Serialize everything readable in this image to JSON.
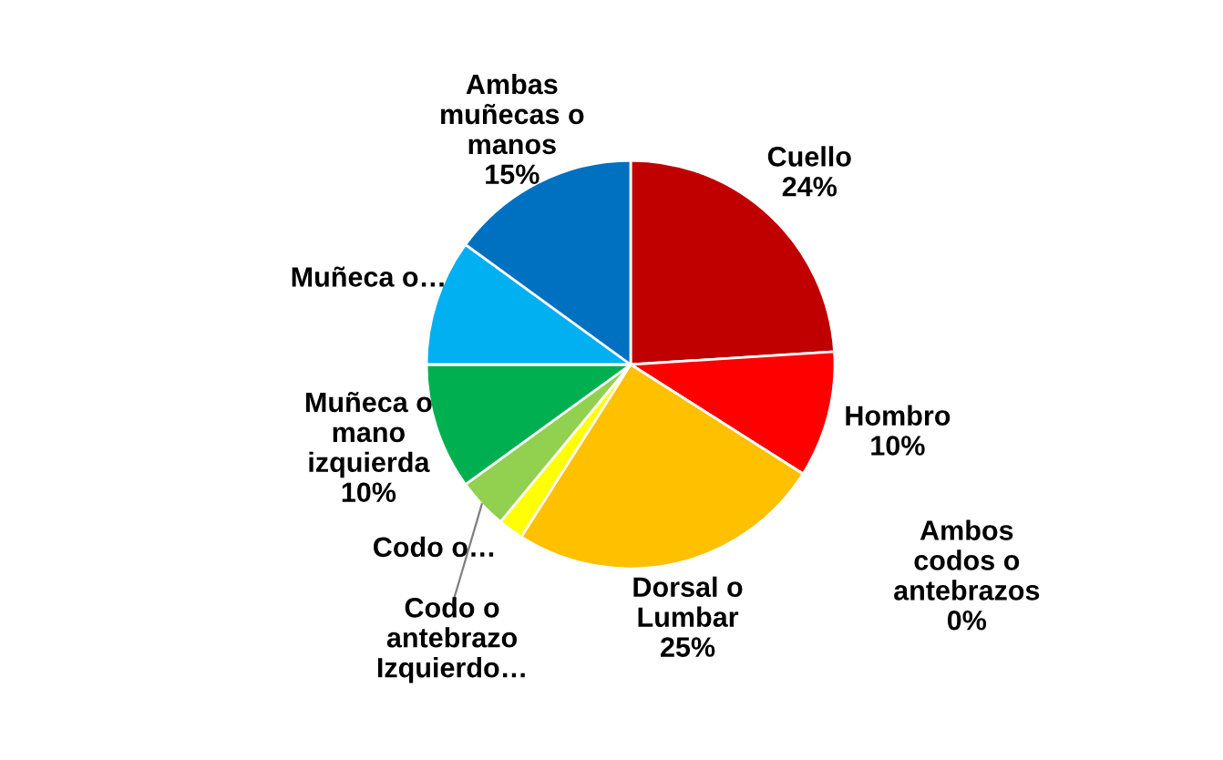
{
  "chart_data": {
    "type": "pie",
    "categories": [
      "Cuello",
      "Hombro",
      "Ambos\ncodos o\nantebrazos",
      "Dorsal o\nLumbar",
      "Codo o…",
      "Codo o\nantebrazo\nIzquierdo…",
      "Muñeca o\nmano\nizquierda",
      "Muñeca o…",
      "Ambas\nmuñecas o\nmanos"
    ],
    "values": [
      24,
      10,
      0,
      25,
      2,
      4,
      10,
      10,
      15
    ],
    "value_labels": [
      "24%",
      "10%",
      "0%",
      "25%",
      null,
      null,
      "10%",
      null,
      "15%"
    ],
    "colors": [
      "#c00000",
      "#ff0000",
      "#ed7d31",
      "#ffc000",
      "#ffff00",
      "#92d050",
      "#00b050",
      "#00b0f0",
      "#0070c0"
    ],
    "legend": false
  }
}
